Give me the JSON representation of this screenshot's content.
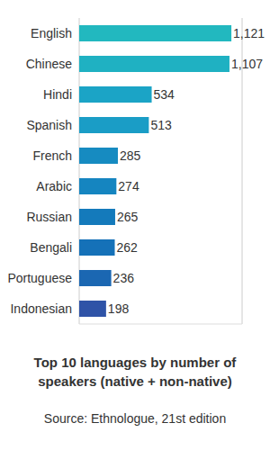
{
  "chart_data": {
    "type": "bar",
    "orientation": "horizontal",
    "title": "Top 10 languages by number of speakers (native + non-native)",
    "annotations": [
      "Source: Ethnologue, 21st edition"
    ],
    "categories": [
      "English",
      "Chinese",
      "Hindi",
      "Spanish",
      "French",
      "Arabic",
      "Russian",
      "Bengali",
      "Portuguese",
      "Indonesian"
    ],
    "values": [
      1121,
      1107,
      534,
      513,
      285,
      274,
      265,
      262,
      236,
      198
    ],
    "value_labels": [
      "1,121",
      "1,107",
      "534",
      "513",
      "285",
      "274",
      "265",
      "262",
      "236",
      "198"
    ],
    "colors": [
      "#22b8bf",
      "#1fb1c2",
      "#1ba4c6",
      "#1a9dc6",
      "#168bc1",
      "#1585c0",
      "#147abb",
      "#1571b8",
      "#1b67b2",
      "#2f53a7"
    ],
    "xlim": [
      0,
      1200
    ],
    "xticks": [
      0,
      300,
      600,
      900,
      1200
    ],
    "grid": true,
    "data_labels": true,
    "tick_labels": "y"
  }
}
